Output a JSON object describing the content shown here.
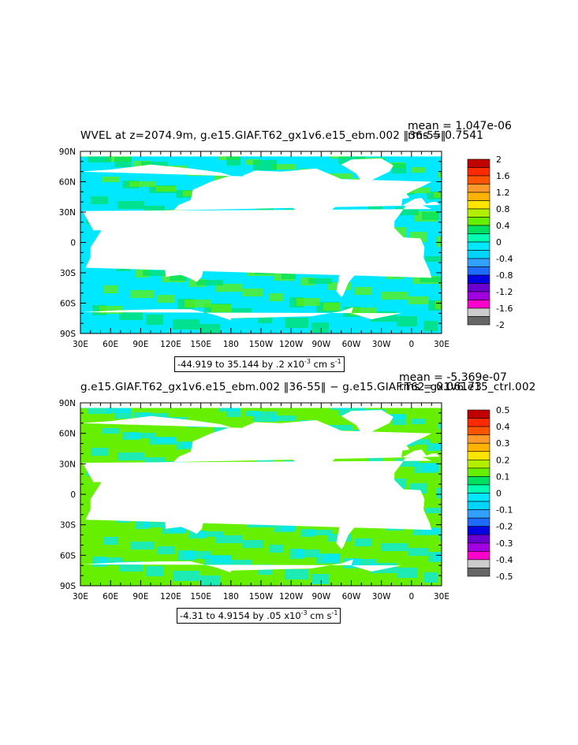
{
  "chart_data": [
    {
      "type": "heatmap",
      "title": "WVEL at z=2074.9m, g.e15.GIAF.T62_gx1v6.e15_ebm.002 ‖36-55‖",
      "stats": [
        "mean = 1.047e-06",
        "rms = 0.7541"
      ],
      "x_ticks": [
        "30E",
        "60E",
        "90E",
        "120E",
        "150E",
        "180",
        "150W",
        "120W",
        "90W",
        "60W",
        "30W",
        "0",
        "30E"
      ],
      "y_ticks": [
        "90N",
        "60N",
        "30N",
        "0",
        "30S",
        "60S",
        "90S"
      ],
      "colorbar": {
        "labels": [
          "2",
          "1.6",
          "1.2",
          "0.8",
          "0.4",
          "0",
          "-0.4",
          "-0.8",
          "-1.2",
          "-1.6",
          "-2"
        ],
        "colors": [
          "#c00000",
          "#ff2a00",
          "#ff5500",
          "#ff9a2a",
          "#ffb300",
          "#ffe400",
          "#b2ee00",
          "#66f000",
          "#00e060",
          "#00ffb0",
          "#00e8ff",
          "#00d5ff",
          "#32a0ff",
          "#1e6cff",
          "#0000e0",
          "#6a00d0",
          "#a000e0",
          "#ff00cc",
          "#cccccc",
          "#666666"
        ]
      },
      "range_text": {
        "pre": "-44.919 to 35.144 by .2 x10",
        "exp": "-3",
        "mid": " cm s",
        "exp2": "-1"
      },
      "dominant_colors": [
        "#00e8ff",
        "#66f000",
        "#00e060"
      ]
    },
    {
      "type": "heatmap",
      "title": "g.e15.GIAF.T62_gx1v6.e15_ebm.002 ‖36-55‖ − g.e15.GIAF.T62_gx1v6.e15_ctrl.002",
      "stats": [
        "mean = -5.369e-07",
        "rms = 0.06173"
      ],
      "x_ticks": [
        "30E",
        "60E",
        "90E",
        "120E",
        "150E",
        "180",
        "150W",
        "120W",
        "90W",
        "60W",
        "30W",
        "0",
        "30E"
      ],
      "y_ticks": [
        "90N",
        "60N",
        "30N",
        "0",
        "30S",
        "60S",
        "90S"
      ],
      "colorbar": {
        "labels": [
          "0.5",
          "0.4",
          "0.3",
          "0.2",
          "0.1",
          "0",
          "-0.1",
          "-0.2",
          "-0.3",
          "-0.4",
          "-0.5"
        ],
        "colors": [
          "#c00000",
          "#ff2a00",
          "#ff5500",
          "#ff9a2a",
          "#ffb300",
          "#ffe400",
          "#b2ee00",
          "#66f000",
          "#00e060",
          "#00ffb0",
          "#00e8ff",
          "#00d5ff",
          "#32a0ff",
          "#1e6cff",
          "#0000e0",
          "#6a00d0",
          "#a000e0",
          "#ff00cc",
          "#cccccc",
          "#666666"
        ]
      },
      "range_text": {
        "pre": "-4.31 to 4.9154 by .05 x10",
        "exp": "-3",
        "mid": " cm s",
        "exp2": "-1"
      },
      "dominant_colors": [
        "#66f000",
        "#00e8ff"
      ]
    }
  ]
}
